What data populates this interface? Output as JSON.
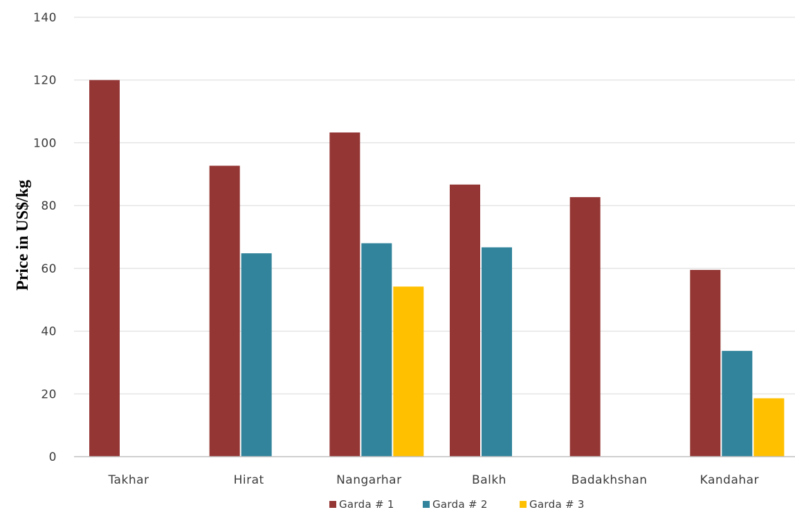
{
  "colors": {
    "grid": "#d9d9d9",
    "axis": "#bfbfbf",
    "series": [
      "#943634",
      "#31849b",
      "#ffc000"
    ]
  },
  "chart_data": {
    "type": "bar",
    "title": "",
    "xlabel": "",
    "ylabel": "Price in US$/kg",
    "ylim": [
      0,
      140
    ],
    "yticks": [
      0,
      20,
      40,
      60,
      80,
      100,
      120,
      140
    ],
    "grid": true,
    "legend_position": "bottom",
    "categories": [
      "Takhar",
      "Hirat",
      "Nangarhar",
      "Balkh",
      "Badakhshan",
      "Kandahar"
    ],
    "series": [
      {
        "name": "Garda # 1",
        "values": [
          120,
          92.7,
          103.3,
          86.7,
          82.7,
          59.5
        ]
      },
      {
        "name": "Garda # 2",
        "values": [
          null,
          64.8,
          68,
          66.7,
          null,
          33.7
        ]
      },
      {
        "name": "Garda # 3",
        "values": [
          null,
          null,
          54.2,
          null,
          null,
          18.6
        ]
      }
    ]
  }
}
